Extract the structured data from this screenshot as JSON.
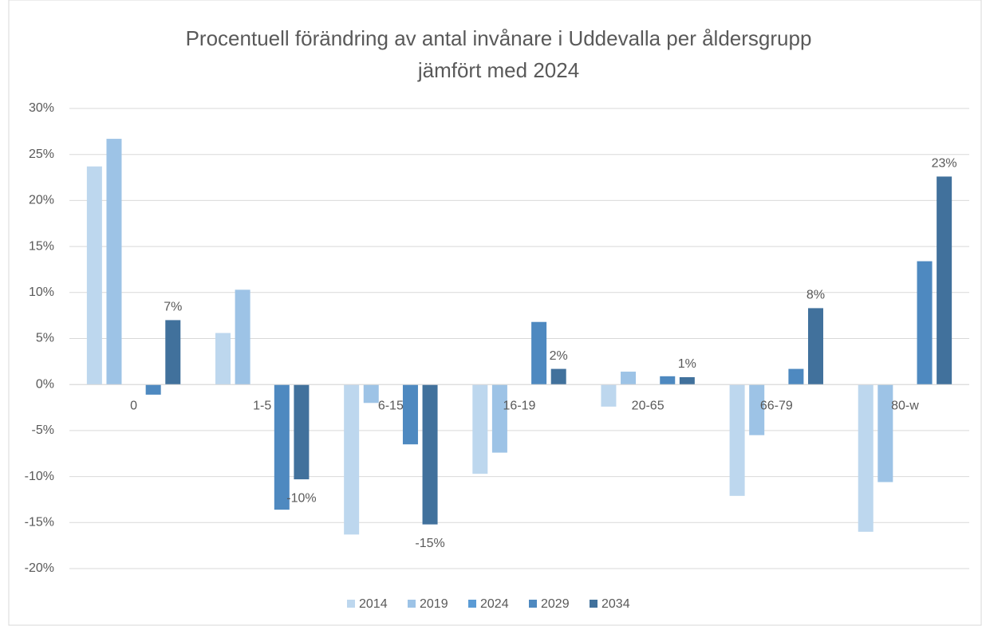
{
  "chart_data": {
    "type": "bar",
    "title": "Procentuell förändring av antal invånare i Uddevalla per åldersgrupp",
    "subtitle": "jämfört med 2024",
    "categories": [
      "0",
      "1-5",
      "6-15",
      "16-19",
      "20-65",
      "66-79",
      "80-w"
    ],
    "series": [
      {
        "name": "2014",
        "color": "#bdd7ee",
        "values": [
          23.7,
          5.6,
          -16.3,
          -9.7,
          -2.4,
          -12.1,
          -16.0
        ]
      },
      {
        "name": "2019",
        "color": "#9dc3e6",
        "values": [
          26.7,
          10.3,
          -2.0,
          -7.4,
          1.4,
          -5.5,
          -10.6
        ]
      },
      {
        "name": "2024",
        "color": "#5b9bd5",
        "values": [
          0,
          0,
          0,
          0,
          0,
          0,
          0
        ]
      },
      {
        "name": "2029",
        "color": "#4e89c0",
        "values": [
          -1.1,
          -13.6,
          -6.5,
          6.8,
          0.9,
          1.7,
          13.4
        ]
      },
      {
        "name": "2034",
        "color": "#41719c",
        "values": [
          7.0,
          -10.3,
          -15.2,
          1.7,
          0.8,
          8.3,
          22.6
        ],
        "value_labels": [
          "7%",
          "-10%",
          "-15%",
          "2%",
          "1%",
          "8%",
          "23%"
        ]
      }
    ],
    "ylim": [
      -20,
      30
    ],
    "yticks": [
      {
        "value": -20,
        "label": "-20%"
      },
      {
        "value": -15,
        "label": "-15%"
      },
      {
        "value": -10,
        "label": "-10%"
      },
      {
        "value": -5,
        "label": "-5%"
      },
      {
        "value": 0,
        "label": "0%"
      },
      {
        "value": 5,
        "label": "5%"
      },
      {
        "value": 10,
        "label": "10%"
      },
      {
        "value": 15,
        "label": "15%"
      },
      {
        "value": 20,
        "label": "20%"
      },
      {
        "value": 25,
        "label": "25%"
      },
      {
        "value": 30,
        "label": "30%"
      }
    ],
    "grid": true,
    "legend": "bottom"
  }
}
